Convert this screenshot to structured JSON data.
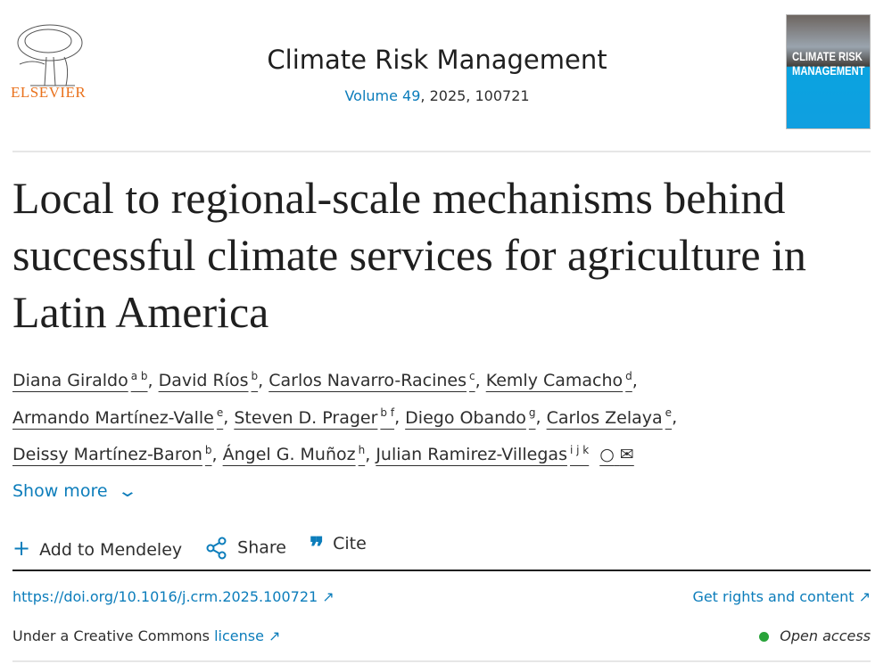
{
  "publisher": {
    "logo_text": "ELSEVIER"
  },
  "journal": {
    "title": "Climate Risk Management",
    "volume_link": "Volume 49",
    "volume_rest": ", 2025, 100721",
    "cover_text": "CLIMATE RISK MANAGEMENT"
  },
  "article": {
    "title": "Local to regional-scale mechanisms behind successful climate services for agriculture in Latin America"
  },
  "authors": [
    {
      "name": "Diana Giraldo",
      "aff": "a b"
    },
    {
      "name": "David Ríos",
      "aff": "b"
    },
    {
      "name": "Carlos Navarro-Racines",
      "aff": "c"
    },
    {
      "name": "Kemly Camacho",
      "aff": "d"
    },
    {
      "name": "Armando Martínez-Valle",
      "aff": "e"
    },
    {
      "name": "Steven D. Prager",
      "aff": "b f"
    },
    {
      "name": "Diego Obando",
      "aff": "g"
    },
    {
      "name": "Carlos Zelaya",
      "aff": "e"
    },
    {
      "name": "Deissy Martínez-Baron",
      "aff": "b"
    },
    {
      "name": "Ángel G. Muñoz",
      "aff": "h"
    },
    {
      "name": "Julian Ramirez-Villegas",
      "aff": "i j k"
    }
  ],
  "show_more": "Show more",
  "actions": {
    "mendeley": "Add to Mendeley",
    "share": "Share",
    "cite": "Cite"
  },
  "doi": "https://doi.org/10.1016/j.crm.2025.100721",
  "rights": "Get rights and content",
  "license_prefix": "Under a Creative Commons ",
  "license_link": "license",
  "open_access": "Open access",
  "colors": {
    "link": "#0c7dbb",
    "brand": "#e9711c",
    "open_access": "#29a33a"
  }
}
